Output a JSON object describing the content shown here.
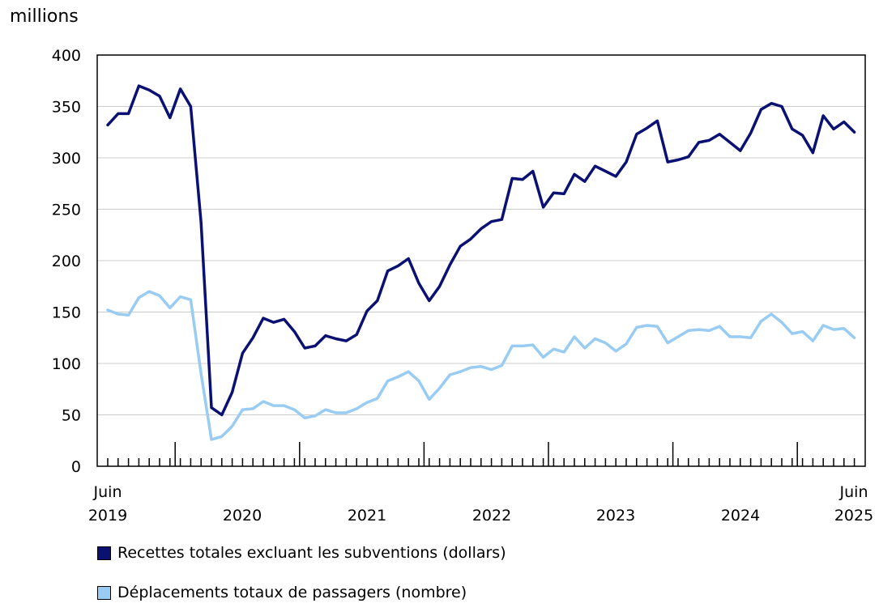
{
  "chart_data": {
    "type": "line",
    "unit_label": "millions",
    "ylim": [
      0,
      400
    ],
    "y_ticks": [
      "0",
      "50",
      "100",
      "150",
      "200",
      "250",
      "300",
      "350",
      "400"
    ],
    "x_labels": [
      {
        "month": "Juin",
        "year": "2019"
      },
      {
        "month": "",
        "year": "2020"
      },
      {
        "month": "",
        "year": "2021"
      },
      {
        "month": "",
        "year": "2022"
      },
      {
        "month": "",
        "year": "2023"
      },
      {
        "month": "",
        "year": "2024"
      },
      {
        "month": "Juin",
        "year": "2025"
      }
    ],
    "x_start": "2019-06",
    "x_end": "2025-06",
    "series": [
      {
        "name": "Recettes totales excluant les subventions (dollars)",
        "color": "#0a1172",
        "values": [
          332,
          343,
          343,
          370,
          366,
          360,
          339,
          367,
          350,
          237,
          57,
          50,
          72,
          110,
          125,
          144,
          140,
          143,
          131,
          115,
          117,
          127,
          124,
          122,
          128,
          151,
          161,
          190,
          195,
          202,
          178,
          161,
          175,
          196,
          214,
          221,
          231,
          238,
          240,
          280,
          279,
          287,
          252,
          266,
          265,
          284,
          277,
          292,
          287,
          282,
          296,
          323,
          329,
          336,
          296,
          298,
          301,
          315,
          317,
          323,
          315,
          307,
          324,
          347,
          353,
          350,
          328,
          322,
          305,
          341,
          328,
          335,
          325
        ]
      },
      {
        "name": "Déplacements totaux de passagers (nombre)",
        "color": "#99ccf2",
        "values": [
          152,
          148,
          147,
          164,
          170,
          166,
          154,
          165,
          162,
          90,
          26,
          29,
          39,
          55,
          56,
          63,
          59,
          59,
          55,
          47,
          49,
          55,
          52,
          52,
          56,
          62,
          66,
          83,
          87,
          92,
          83,
          65,
          76,
          89,
          92,
          96,
          97,
          94,
          98,
          117,
          117,
          118,
          106,
          114,
          111,
          126,
          115,
          124,
          120,
          112,
          119,
          135,
          137,
          136,
          120,
          126,
          132,
          133,
          132,
          136,
          126,
          126,
          125,
          141,
          148,
          140,
          129,
          131,
          122,
          137,
          133,
          134,
          125
        ]
      }
    ]
  }
}
